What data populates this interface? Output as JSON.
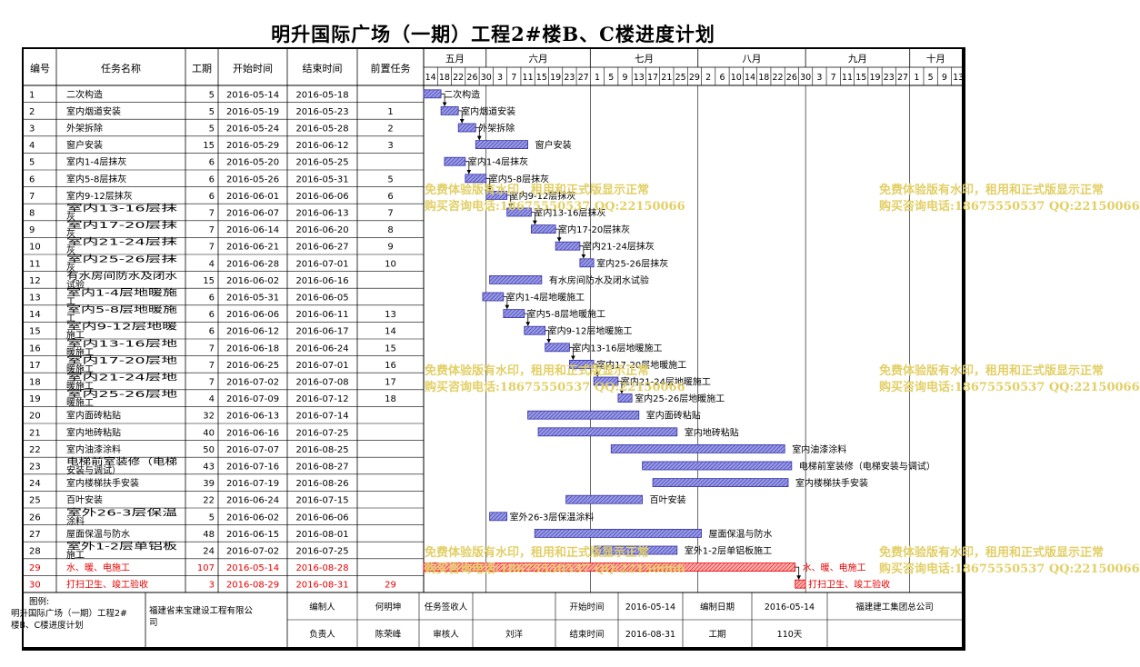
{
  "title": "明升国际广场（一期）工程2#楼B、C楼进度计划",
  "headers": {
    "id": "编号",
    "name": "任务名称",
    "duration": "工期",
    "start": "开始时间",
    "end": "结束时间",
    "pred": "前置任务"
  },
  "timeline": {
    "months": [
      "五月",
      "六月",
      "七月",
      "八月",
      "九月",
      "十月"
    ],
    "day_ticks": [
      "14",
      "18",
      "22",
      "26",
      "30",
      "3",
      "7",
      "11",
      "15",
      "19",
      "23",
      "27",
      "1",
      "5",
      "9",
      "13",
      "17",
      "21",
      "25",
      "29",
      "2",
      "6",
      "10",
      "14",
      "18",
      "22",
      "26",
      "30",
      "3",
      "7",
      "11",
      "15",
      "19",
      "23",
      "27",
      "1",
      "5",
      "9",
      "13"
    ]
  },
  "colors": {
    "bar": "#3333aa",
    "bar_fill": "#8888dd",
    "critical": "#e60000",
    "critical_fill": "#ff9999",
    "watermark": "#e2cf66"
  },
  "chart_data": {
    "type": "gantt",
    "time_axis_start": "2016-05-14",
    "time_axis_end": "2016-10-16",
    "tasks": [
      {
        "id": "1",
        "name": "二次构造",
        "duration": "5",
        "start": "2016-05-14",
        "end": "2016-05-18",
        "pred": "",
        "critical": false
      },
      {
        "id": "2",
        "name": "室内烟道安装",
        "duration": "5",
        "start": "2016-05-19",
        "end": "2016-05-23",
        "pred": "1",
        "critical": false
      },
      {
        "id": "3",
        "name": "外架拆除",
        "duration": "5",
        "start": "2016-05-24",
        "end": "2016-05-28",
        "pred": "2",
        "critical": false
      },
      {
        "id": "4",
        "name": "窗户安装",
        "duration": "15",
        "start": "2016-05-29",
        "end": "2016-06-12",
        "pred": "3",
        "critical": false
      },
      {
        "id": "5",
        "name": "室内1-4层抹灰",
        "duration": "6",
        "start": "2016-05-20",
        "end": "2016-05-25",
        "pred": "",
        "critical": false
      },
      {
        "id": "6",
        "name": "室内5-8层抹灰",
        "duration": "6",
        "start": "2016-05-26",
        "end": "2016-05-31",
        "pred": "5",
        "critical": false
      },
      {
        "id": "7",
        "name": "室内9-12层抹灰",
        "duration": "6",
        "start": "2016-06-01",
        "end": "2016-06-06",
        "pred": "6",
        "critical": false
      },
      {
        "id": "8",
        "name": "室内13-16层抹灰",
        "duration": "7",
        "start": "2016-06-07",
        "end": "2016-06-13",
        "pred": "7",
        "critical": false
      },
      {
        "id": "9",
        "name": "室内17-20层抹灰",
        "duration": "7",
        "start": "2016-06-14",
        "end": "2016-06-20",
        "pred": "8",
        "critical": false
      },
      {
        "id": "10",
        "name": "室内21-24层抹灰",
        "duration": "7",
        "start": "2016-06-21",
        "end": "2016-06-27",
        "pred": "9",
        "critical": false
      },
      {
        "id": "11",
        "name": "室内25-26层抹灰",
        "duration": "4",
        "start": "2016-06-28",
        "end": "2016-07-01",
        "pred": "10",
        "critical": false
      },
      {
        "id": "12",
        "name": "有水房间防水及闭水试验",
        "duration": "15",
        "start": "2016-06-02",
        "end": "2016-06-16",
        "pred": "",
        "critical": false
      },
      {
        "id": "13",
        "name": "室内1-4层地暖施工",
        "duration": "6",
        "start": "2016-05-31",
        "end": "2016-06-05",
        "pred": "",
        "critical": false
      },
      {
        "id": "14",
        "name": "室内5-8层地暖施工",
        "duration": "6",
        "start": "2016-06-06",
        "end": "2016-06-11",
        "pred": "13",
        "critical": false
      },
      {
        "id": "15",
        "name": "室内9-12层地暖施工",
        "duration": "6",
        "start": "2016-06-12",
        "end": "2016-06-17",
        "pred": "14",
        "critical": false
      },
      {
        "id": "16",
        "name": "室内13-16层地暖施工",
        "duration": "7",
        "start": "2016-06-18",
        "end": "2016-06-24",
        "pred": "15",
        "critical": false
      },
      {
        "id": "17",
        "name": "室内17-20层地暖施工",
        "duration": "7",
        "start": "2016-06-25",
        "end": "2016-07-01",
        "pred": "16",
        "critical": false
      },
      {
        "id": "18",
        "name": "室内21-24层地暖施工",
        "duration": "7",
        "start": "2016-07-02",
        "end": "2016-07-08",
        "pred": "17",
        "critical": false
      },
      {
        "id": "19",
        "name": "室内25-26层地暖施工",
        "duration": "4",
        "start": "2016-07-09",
        "end": "2016-07-12",
        "pred": "18",
        "critical": false
      },
      {
        "id": "20",
        "name": "室内面砖粘贴",
        "duration": "32",
        "start": "2016-06-13",
        "end": "2016-07-14",
        "pred": "",
        "critical": false
      },
      {
        "id": "21",
        "name": "室内地砖粘贴",
        "duration": "40",
        "start": "2016-06-16",
        "end": "2016-07-25",
        "pred": "",
        "critical": false
      },
      {
        "id": "22",
        "name": "室内油漆涂料",
        "duration": "50",
        "start": "2016-07-07",
        "end": "2016-08-25",
        "pred": "",
        "critical": false
      },
      {
        "id": "23",
        "name": "电梯前室装修（电梯安装与调试）",
        "duration": "43",
        "start": "2016-07-16",
        "end": "2016-08-27",
        "pred": "",
        "critical": false
      },
      {
        "id": "24",
        "name": "室内楼梯扶手安装",
        "duration": "39",
        "start": "2016-07-19",
        "end": "2016-08-26",
        "pred": "",
        "critical": false
      },
      {
        "id": "25",
        "name": "百叶安装",
        "duration": "22",
        "start": "2016-06-24",
        "end": "2016-07-15",
        "pred": "",
        "critical": false
      },
      {
        "id": "26",
        "name": "室外26-3层保温涂料",
        "duration": "5",
        "start": "2016-06-02",
        "end": "2016-06-06",
        "pred": "",
        "critical": false
      },
      {
        "id": "27",
        "name": "屋面保温与防水",
        "duration": "48",
        "start": "2016-06-15",
        "end": "2016-08-01",
        "pred": "",
        "critical": false
      },
      {
        "id": "28",
        "name": "室外1-2层单铝板施工",
        "duration": "24",
        "start": "2016-07-02",
        "end": "2016-07-25",
        "pred": "",
        "critical": false
      },
      {
        "id": "29",
        "name": "水、暖、电施工",
        "duration": "107",
        "start": "2016-05-14",
        "end": "2016-08-28",
        "pred": "",
        "critical": true
      },
      {
        "id": "30",
        "name": "打扫卫生、竣工验收",
        "duration": "3",
        "start": "2016-08-29",
        "end": "2016-08-31",
        "pred": "29",
        "critical": true
      }
    ]
  },
  "footer": {
    "legend_label": "图例:",
    "project_name": "明升国际广场（一期）工程2#楼B、C楼进度计划",
    "company": "福建省来宝建设工程有限公司",
    "editor_label": "编制人",
    "editor": "何明坤",
    "task_signer_label": "任务签收人",
    "task_signer": "",
    "start_label": "开始时间",
    "start": "2016-05-14",
    "edit_date_label": "编制日期",
    "edit_date": "2016-05-14",
    "group_company": "福建建工集团总公司",
    "owner_label": "负责人",
    "owner": "陈荣峰",
    "reviewer_label": "审核人",
    "reviewer": "刘洋",
    "end_label": "结束时间",
    "end": "2016-08-31",
    "duration_label": "工期",
    "duration": "110天"
  },
  "watermark": {
    "line1": "免费体验版有水印，租用和正式版显示正常",
    "line2": "购买咨询电话:18675550537 QQ:22150066"
  }
}
